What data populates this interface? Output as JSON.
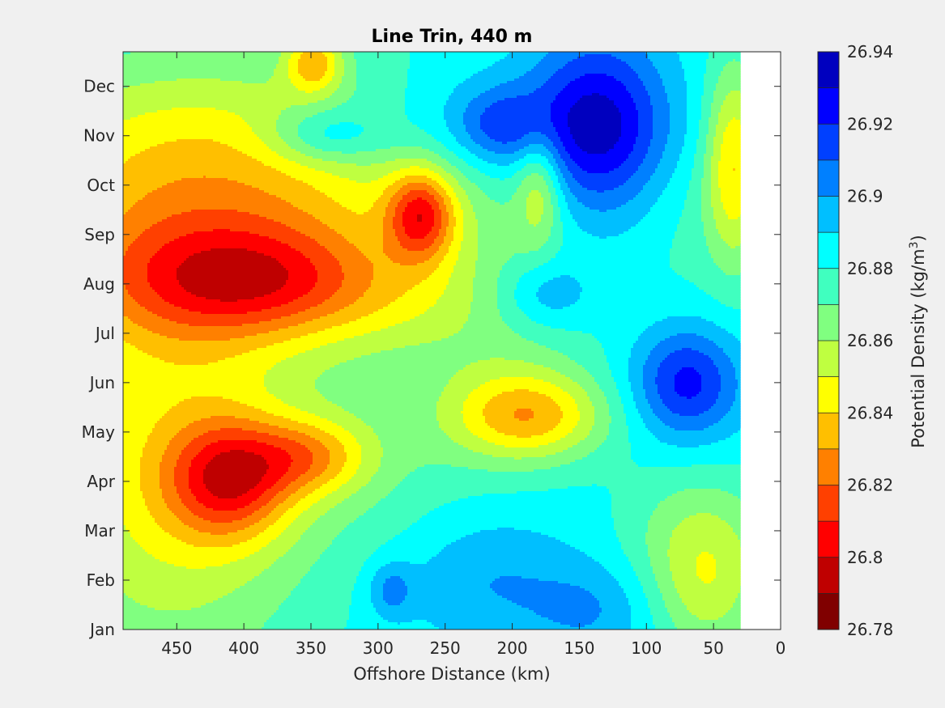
{
  "chart_data": {
    "type": "contour",
    "title": "Line Trin, 440 m",
    "xlabel": "Offshore Distance (km)",
    "ylabel": "",
    "xlim": [
      490,
      0
    ],
    "x_reversed": true,
    "data_x_extent": [
      490,
      30
    ],
    "x_ticks": [
      "450",
      "400",
      "350",
      "300",
      "250",
      "200",
      "150",
      "100",
      "50",
      "0"
    ],
    "x_tick_values": [
      450,
      400,
      350,
      300,
      250,
      200,
      150,
      100,
      50,
      0
    ],
    "y_ticks": [
      "Jan",
      "Feb",
      "Mar",
      "Apr",
      "May",
      "Jun",
      "Jul",
      "Aug",
      "Sep",
      "Oct",
      "Nov",
      "Dec"
    ],
    "y_range_months": [
      1,
      12.7
    ],
    "grid": false,
    "colorbar": {
      "label": "Potential Density (kg/m",
      "label_superscript": "3",
      "label_suffix": ")",
      "tick_labels": [
        "26.94",
        "26.92",
        "26.9",
        "26.88",
        "26.86",
        "26.84",
        "26.82",
        "26.8",
        "26.78"
      ],
      "tick_values": [
        26.94,
        26.92,
        26.9,
        26.88,
        26.86,
        26.84,
        26.82,
        26.8,
        26.78
      ],
      "levels": [
        26.78,
        26.79,
        26.8,
        26.81,
        26.82,
        26.83,
        26.84,
        26.85,
        26.86,
        26.87,
        26.88,
        26.89,
        26.9,
        26.91,
        26.92,
        26.93,
        26.94
      ],
      "colors": [
        "#800000",
        "#bf0000",
        "#ff0000",
        "#ff4000",
        "#ff8000",
        "#ffbf00",
        "#ffff00",
        "#bfff40",
        "#80ff80",
        "#40ffbf",
        "#00ffff",
        "#00bfff",
        "#0080ff",
        "#0040ff",
        "#0000ff",
        "#0000bf"
      ]
    },
    "background": 26.885,
    "features": [
      {
        "x": 300,
        "month": 9.7,
        "sx": 200,
        "sy": 1.8,
        "value": -0.02
      },
      {
        "x": 440,
        "month": 10.5,
        "sx": 110,
        "sy": 1.6,
        "value": -0.03
      },
      {
        "x": 455,
        "month": 4.3,
        "sx": 75,
        "sy": 3.0,
        "value": -0.04
      },
      {
        "x": 415,
        "month": 8.1,
        "sx": 90,
        "sy": 1.0,
        "value": -0.04
      },
      {
        "x": 380,
        "month": 8.0,
        "sx": 60,
        "sy": 0.7,
        "value": -0.02
      },
      {
        "x": 410,
        "month": 4.05,
        "sx": 33,
        "sy": 0.85,
        "value": -0.055
      },
      {
        "x": 350,
        "month": 4.5,
        "sx": 32,
        "sy": 0.55,
        "value": -0.035
      },
      {
        "x": 300,
        "month": 4.6,
        "sx": 55,
        "sy": 1.6,
        "value": -0.01
      },
      {
        "x": 268,
        "month": 9.4,
        "sx": 18,
        "sy": 0.65,
        "value": -0.055
      },
      {
        "x": 185,
        "month": 5.3,
        "sx": 40,
        "sy": 0.6,
        "value": -0.035
      },
      {
        "x": 200,
        "month": 5.6,
        "sx": 45,
        "sy": 1.0,
        "value": -0.02
      },
      {
        "x": 265,
        "month": 7.5,
        "sx": 50,
        "sy": 0.7,
        "value": -0.01
      },
      {
        "x": 348,
        "month": 12.5,
        "sx": 15,
        "sy": 0.45,
        "value": -0.04
      },
      {
        "x": 35,
        "month": 10.5,
        "sx": 15,
        "sy": 1.4,
        "value": -0.04
      },
      {
        "x": 60,
        "month": 3.0,
        "sx": 40,
        "sy": 1.0,
        "value": -0.02
      },
      {
        "x": 55,
        "month": 1.7,
        "sx": 30,
        "sy": 1.0,
        "value": -0.025
      },
      {
        "x": 180,
        "month": 10.0,
        "sx": 12,
        "sy": 0.8,
        "value": -0.03
      },
      {
        "x": 200,
        "month": 11.2,
        "sx": 80,
        "sy": 0.9,
        "value": 0.025
      },
      {
        "x": 135,
        "month": 11.0,
        "sx": 35,
        "sy": 1.5,
        "value": 0.045
      },
      {
        "x": 210,
        "month": 11.2,
        "sx": 22,
        "sy": 0.5,
        "value": 0.02
      },
      {
        "x": 70,
        "month": 6.0,
        "sx": 28,
        "sy": 0.8,
        "value": 0.04
      },
      {
        "x": 175,
        "month": 7.8,
        "sx": 25,
        "sy": 0.5,
        "value": 0.02
      },
      {
        "x": 220,
        "month": 2.0,
        "sx": 45,
        "sy": 0.9,
        "value": 0.015
      },
      {
        "x": 340,
        "month": 11.0,
        "sx": 30,
        "sy": 0.4,
        "value": 0.025
      },
      {
        "x": 140,
        "month": 1.4,
        "sx": 35,
        "sy": 0.7,
        "value": 0.015
      },
      {
        "x": 290,
        "month": 1.8,
        "sx": 12,
        "sy": 0.4,
        "value": 0.02
      }
    ],
    "colors": {
      "plot_border": "#262626",
      "figure_bg": "#f0f0f0",
      "no_data": "#ffffff"
    }
  }
}
